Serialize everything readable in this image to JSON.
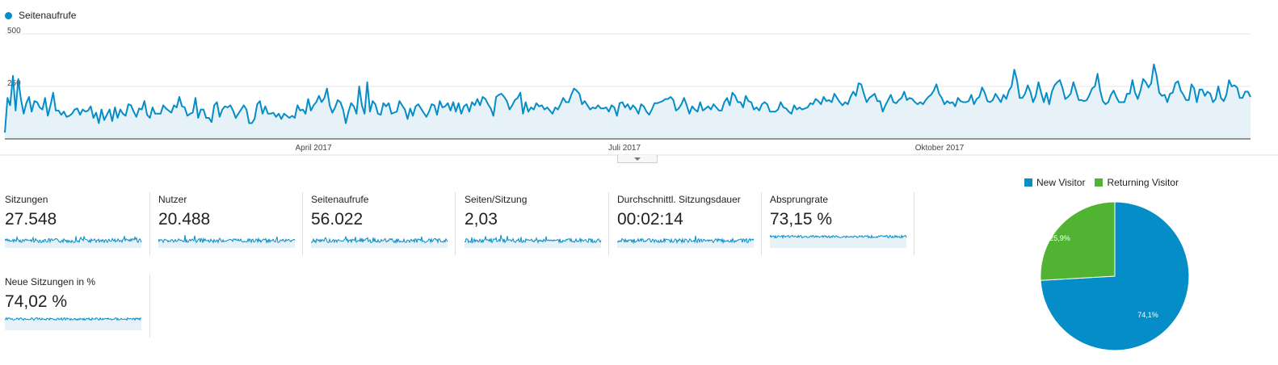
{
  "main": {
    "legend": "Seitenaufrufe",
    "color": "#058dc7",
    "y_ticks": [
      "500",
      "250"
    ],
    "x_ticks": [
      "April 2017",
      "Juli 2017",
      "Oktober 2017"
    ]
  },
  "metrics": [
    {
      "label": "Sitzungen",
      "value": "27.548"
    },
    {
      "label": "Nutzer",
      "value": "20.488"
    },
    {
      "label": "Seitenaufrufe",
      "value": "56.022"
    },
    {
      "label": "Seiten/Sitzung",
      "value": "2,03"
    },
    {
      "label": "Durchschnittl. Sitzungsdauer",
      "value": "00:02:14"
    },
    {
      "label": "Absprungrate",
      "value": "73,15 %"
    },
    {
      "label": "Neue Sitzungen in %",
      "value": "74,02 %"
    }
  ],
  "pie": {
    "legend": [
      {
        "label": "New Visitor",
        "color": "#058dc7"
      },
      {
        "label": "Returning Visitor",
        "color": "#50b432"
      }
    ],
    "labels": [
      "74,1%",
      "25,9%"
    ]
  },
  "chart_data": {
    "type": "line",
    "title": "",
    "series": [
      {
        "name": "Seitenaufrufe",
        "values": [
          30,
          195,
          160,
          300,
          135,
          285,
          190,
          120,
          170,
          200,
          130,
          180,
          175,
          150,
          140,
          195,
          110,
          160,
          220,
          135,
          135,
          115,
          130,
          105,
          110,
          120,
          140,
          145,
          115,
          140,
          130,
          135,
          155,
          100,
          125,
          75,
          140,
          90,
          115,
          140,
          85,
          150,
          100,
          140,
          120,
          110,
          165,
          160,
          130,
          105,
          145,
          140,
          180,
          115,
          100,
          150,
          120,
          120,
          120,
          160,
          145,
          135,
          125,
          160,
          150,
          200,
          155,
          150,
          110,
          120,
          125,
          195,
          100,
          140,
          140,
          100,
          100,
          80,
          160,
          175,
          105,
          140,
          155,
          150,
          160,
          135,
          100,
          120,
          140,
          160,
          140,
          75,
          75,
          95,
          165,
          180,
          120,
          155,
          120,
          120,
          125,
          105,
          120,
          95,
          120,
          110,
          100,
          110,
          100,
          160,
          135,
          140,
          120,
          190,
          135,
          160,
          175,
          205,
          175,
          195,
          240,
          160,
          125,
          150,
          185,
          175,
          140,
          75,
          130,
          170,
          155,
          120,
          250,
          160,
          120,
          270,
          130,
          180,
          165,
          120,
          115,
          170,
          155,
          170,
          120,
          125,
          130,
          180,
          160,
          140,
          95,
          145,
          110,
          155,
          165,
          145,
          125,
          105,
          130,
          165,
          160,
          115,
          180,
          150,
          155,
          170,
          135,
          175,
          130,
          170,
          120,
          155,
          165,
          130,
          175,
          160,
          190,
          160,
          200,
          190,
          165,
          145,
          110,
          200,
          210,
          215,
          200,
          180,
          140,
          160,
          185,
          195,
          220,
          120,
          175,
          130,
          150,
          140,
          170,
          155,
          160,
          140,
          150,
          135,
          120,
          150,
          140,
          165,
          195,
          175,
          175,
          210,
          240,
          230,
          215,
          165,
          180,
          160,
          140,
          150,
          145,
          160,
          145,
          145,
          150,
          130,
          160,
          150,
          110,
          170,
          175,
          150,
          165,
          140,
          160,
          145,
          120,
          165,
          155,
          130,
          115,
          140,
          170,
          170,
          175,
          180,
          190,
          190,
          200,
          185,
          135,
          145,
          165,
          195,
          160,
          120,
          155,
          140,
          130,
          175,
          135,
          145,
          155,
          140,
          165,
          150,
          135,
          135,
          175,
          195,
          160,
          220,
          205,
          175,
          175,
          150,
          205,
          180,
          175,
          140,
          150,
          135,
          165,
          175,
          165,
          130,
          130,
          130,
          140,
          175,
          150,
          145,
          130,
          120,
          160,
          140,
          150,
          140,
          145,
          150,
          170,
          165,
          190,
          180,
          165,
          200,
          180,
          185,
          175,
          215,
          195,
          175,
          160,
          175,
          165,
          200,
          225,
          205,
          265,
          260,
          215,
          175,
          195,
          205,
          215,
          180,
          180,
          130,
          160,
          185,
          210,
          175,
          170,
          185,
          195,
          225,
          185,
          195,
          190,
          175,
          165,
          175,
          165,
          185,
          200,
          210,
          230,
          260,
          215,
          195,
          165,
          180,
          170,
          175,
          155,
          195,
          180,
          175,
          175,
          180,
          210,
          165,
          190,
          200,
          245,
          220,
          180,
          175,
          185,
          215,
          195,
          175,
          210,
          190,
          230,
          250,
          330,
          280,
          195,
          195,
          215,
          255,
          225,
          175,
          205,
          270,
          220,
          175,
          220,
          165,
          225,
          255,
          270,
          280,
          240,
          190,
          200,
          215,
          270,
          230,
          185,
          185,
          180,
          185,
          210,
          240,
          250,
          310,
          230,
          180,
          165,
          175,
          210,
          230,
          200,
          175,
          175,
          175,
          215,
          215,
          280,
          220,
          190,
          230,
          285,
          270,
          245,
          265,
          355,
          300,
          220,
          205,
          210,
          175,
          215,
          220,
          265,
          275,
          230,
          210,
          185,
          185,
          260,
          240,
          175,
          235,
          235,
          205,
          225,
          215,
          175,
          190,
          250,
          195,
          180,
          210,
          280,
          250,
          255,
          245,
          195,
          195,
          225,
          225,
          200
        ]
      }
    ],
    "ylim": [
      0,
      500
    ],
    "y_ticks": [
      250,
      500
    ],
    "x_ticks": [
      "April 2017",
      "Juli 2017",
      "Oktober 2017"
    ],
    "grid": true,
    "legend": "top-left"
  }
}
